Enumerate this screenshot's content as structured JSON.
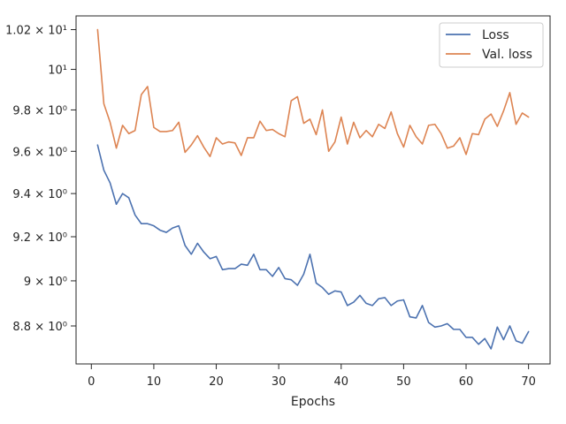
{
  "chart_data": {
    "type": "line",
    "title": "",
    "xlabel": "Epochs",
    "ylabel": "",
    "yscale": "log",
    "xlim": [
      -2.45,
      73.45
    ],
    "ylim": [
      8.635,
      10.27
    ],
    "grid": false,
    "legend_position": "top-right",
    "x_ticks": [
      0,
      10,
      20,
      30,
      40,
      50,
      60,
      70
    ],
    "x_tick_labels": [
      "0",
      "10",
      "20",
      "30",
      "40",
      "50",
      "60",
      "70"
    ],
    "y_ticks": [
      8.8,
      9.0,
      9.2,
      9.4,
      9.6,
      9.8,
      10.0,
      10.2
    ],
    "y_tick_labels": [
      "8.8 × 10⁰",
      "9 × 10⁰",
      "9.2 × 10⁰",
      "9.4 × 10⁰",
      "9.6 × 10⁰",
      "9.8 × 10⁰",
      "10¹",
      "1.02 × 10¹"
    ],
    "colors": {
      "loss": "#4c72b0",
      "val_loss": "#dd8452"
    },
    "x": [
      1,
      2,
      3,
      4,
      5,
      6,
      7,
      8,
      9,
      10,
      11,
      12,
      13,
      14,
      15,
      16,
      17,
      18,
      19,
      20,
      21,
      22,
      23,
      24,
      25,
      26,
      27,
      28,
      29,
      30,
      31,
      32,
      33,
      34,
      35,
      36,
      37,
      38,
      39,
      40,
      41,
      42,
      43,
      44,
      45,
      46,
      47,
      48,
      49,
      50,
      51,
      52,
      53,
      54,
      55,
      56,
      57,
      58,
      59,
      60,
      61,
      62,
      63,
      64,
      65,
      66,
      67,
      68,
      69,
      70
    ],
    "series": [
      {
        "name": "Loss",
        "color": "#4c72b0",
        "values": [
          9.63,
          9.51,
          9.45,
          9.35,
          9.4,
          9.38,
          9.3,
          9.26,
          9.26,
          9.25,
          9.23,
          9.22,
          9.24,
          9.25,
          9.16,
          9.12,
          9.17,
          9.13,
          9.1,
          9.11,
          9.05,
          9.055,
          9.055,
          9.075,
          9.07,
          9.12,
          9.05,
          9.05,
          9.02,
          9.06,
          9.01,
          9.005,
          8.98,
          9.03,
          9.12,
          8.99,
          8.97,
          8.94,
          8.955,
          8.95,
          8.89,
          8.905,
          8.935,
          8.9,
          8.89,
          8.92,
          8.925,
          8.89,
          8.91,
          8.915,
          8.84,
          8.835,
          8.89,
          8.815,
          8.795,
          8.8,
          8.81,
          8.785,
          8.785,
          8.75,
          8.75,
          8.72,
          8.745,
          8.7,
          8.795,
          8.74,
          8.8,
          8.735,
          8.725,
          8.775
        ]
      },
      {
        "name": "Val. loss",
        "color": "#dd8452",
        "values": [
          10.2,
          9.83,
          9.74,
          9.615,
          9.725,
          9.685,
          9.7,
          9.875,
          9.915,
          9.715,
          9.695,
          9.695,
          9.7,
          9.74,
          9.595,
          9.63,
          9.675,
          9.62,
          9.575,
          9.665,
          9.635,
          9.645,
          9.64,
          9.58,
          9.665,
          9.665,
          9.745,
          9.7,
          9.705,
          9.685,
          9.67,
          9.845,
          9.865,
          9.735,
          9.755,
          9.68,
          9.8,
          9.6,
          9.645,
          9.765,
          9.635,
          9.74,
          9.665,
          9.7,
          9.67,
          9.73,
          9.71,
          9.79,
          9.685,
          9.62,
          9.725,
          9.67,
          9.635,
          9.725,
          9.73,
          9.685,
          9.615,
          9.625,
          9.665,
          9.585,
          9.685,
          9.68,
          9.755,
          9.78,
          9.72,
          9.795,
          9.885,
          9.73,
          9.785,
          9.765
        ]
      }
    ]
  }
}
